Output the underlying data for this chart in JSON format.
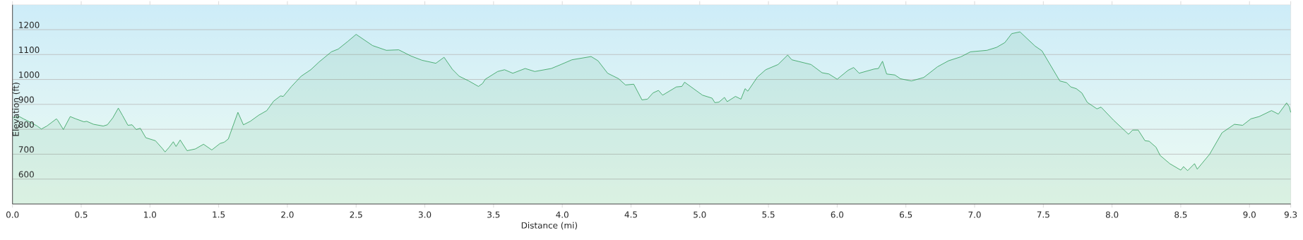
{
  "chart_data": {
    "type": "area",
    "xlabel": "Distance (mi)",
    "ylabel": "Elevation (ft)",
    "color": "#2e9e58",
    "x": [
      0.0,
      0.01,
      0.05,
      0.08,
      0.13,
      0.18,
      0.21,
      0.25,
      0.32,
      0.33,
      0.37,
      0.42,
      0.46,
      0.52,
      0.54,
      0.59,
      0.66,
      0.69,
      0.73,
      0.77,
      0.8,
      0.84,
      0.87,
      0.9,
      0.93,
      0.97,
      1.04,
      1.09,
      1.11,
      1.14,
      1.17,
      1.19,
      1.22,
      1.27,
      1.33,
      1.39,
      1.45,
      1.51,
      1.54,
      1.57,
      1.64,
      1.68,
      1.73,
      1.79,
      1.85,
      1.9,
      1.95,
      1.97,
      2.03,
      2.1,
      2.17,
      2.23,
      2.32,
      2.37,
      2.44,
      2.5,
      2.58,
      2.62,
      2.72,
      2.81,
      2.9,
      2.98,
      3.08,
      3.14,
      3.2,
      3.25,
      3.32,
      3.39,
      3.42,
      3.44,
      3.53,
      3.58,
      3.64,
      3.73,
      3.8,
      3.92,
      3.99,
      4.07,
      4.21,
      4.26,
      4.33,
      4.41,
      4.46,
      4.52,
      4.58,
      4.62,
      4.66,
      4.7,
      4.73,
      4.83,
      4.87,
      4.89,
      4.95,
      5.02,
      5.09,
      5.11,
      5.14,
      5.18,
      5.2,
      5.26,
      5.3,
      5.33,
      5.35,
      5.42,
      5.48,
      5.57,
      5.64,
      5.67,
      5.81,
      5.89,
      5.94,
      6.0,
      6.08,
      6.12,
      6.16,
      6.27,
      6.3,
      6.33,
      6.36,
      6.42,
      6.46,
      6.54,
      6.63,
      6.73,
      6.81,
      6.9,
      6.97,
      7.01,
      7.09,
      7.16,
      7.22,
      7.27,
      7.33,
      7.44,
      7.49,
      7.62,
      7.67,
      7.7,
      7.74,
      7.78,
      7.82,
      7.89,
      7.92,
      8.01,
      8.12,
      8.15,
      8.19,
      8.24,
      8.27,
      8.32,
      8.35,
      8.42,
      8.5,
      8.52,
      8.55,
      8.6,
      8.62,
      8.71,
      8.8,
      8.89,
      8.95,
      9.01,
      9.07,
      9.16,
      9.21,
      9.27,
      9.29,
      9.3
    ],
    "values": [
      850,
      847,
      851,
      842,
      828,
      813,
      801,
      813,
      842,
      835,
      799,
      851,
      842,
      830,
      832,
      820,
      813,
      818,
      846,
      885,
      856,
      816,
      818,
      799,
      804,
      766,
      754,
      723,
      709,
      728,
      750,
      731,
      757,
      714,
      721,
      740,
      717,
      743,
      748,
      761,
      868,
      818,
      832,
      856,
      875,
      913,
      934,
      932,
      972,
      1013,
      1039,
      1070,
      1111,
      1122,
      1153,
      1181,
      1151,
      1136,
      1117,
      1119,
      1094,
      1077,
      1065,
      1089,
      1041,
      1013,
      994,
      972,
      984,
      1001,
      1032,
      1039,
      1025,
      1044,
      1032,
      1044,
      1060,
      1079,
      1092,
      1075,
      1025,
      1003,
      978,
      981,
      918,
      921,
      946,
      956,
      937,
      970,
      972,
      989,
      965,
      937,
      925,
      907,
      909,
      928,
      911,
      932,
      921,
      963,
      953,
      1010,
      1039,
      1060,
      1098,
      1079,
      1060,
      1027,
      1022,
      1001,
      1037,
      1048,
      1025,
      1042,
      1044,
      1073,
      1022,
      1018,
      1003,
      994,
      1008,
      1051,
      1075,
      1091,
      1111,
      1113,
      1117,
      1129,
      1148,
      1184,
      1191,
      1134,
      1115,
      994,
      987,
      970,
      963,
      946,
      908,
      882,
      889,
      837,
      780,
      797,
      797,
      754,
      752,
      728,
      695,
      662,
      636,
      650,
      634,
      662,
      640,
      700,
      786,
      820,
      816,
      842,
      851,
      875,
      861,
      906,
      890,
      868
    ],
    "xlim": [
      0,
      9.3
    ],
    "ylim": [
      500,
      1300
    ],
    "xticks": [
      {
        "value": 0,
        "label": "0.0"
      },
      0.5,
      {
        "value": 1,
        "label": "1.0"
      },
      1.5,
      {
        "value": 2,
        "label": "2.0"
      },
      2.5,
      {
        "value": 3,
        "label": "3.0"
      },
      3.5,
      {
        "value": 4,
        "label": "4.0"
      },
      4.5,
      {
        "value": 5,
        "label": "5.0"
      },
      5.5,
      {
        "value": 6,
        "label": "6.0"
      },
      6.5,
      {
        "value": 7,
        "label": "7.0"
      },
      7.5,
      {
        "value": 8,
        "label": "8.0"
      },
      8.5,
      {
        "value": 9,
        "label": "9.0"
      },
      9.3
    ],
    "yticks": [
      600,
      700,
      800,
      900,
      1000,
      1100,
      1200
    ],
    "grid": "y"
  }
}
